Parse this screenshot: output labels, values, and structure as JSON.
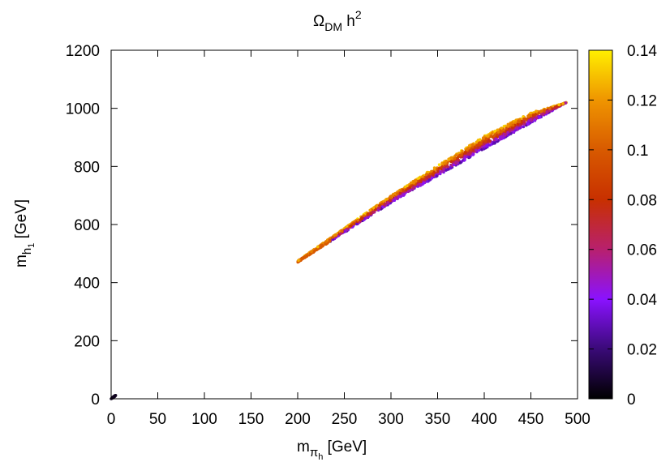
{
  "chart_data": {
    "type": "scatter",
    "title": {
      "base": "Ω",
      "sub": "DM",
      "mid": " h",
      "sup": "2"
    },
    "xlabel": {
      "base": "m",
      "sub": "π",
      "subsub": "h",
      "unit": " [GeV]"
    },
    "ylabel": {
      "base": "m",
      "sub": "h",
      "subsub": "1",
      "unit": " [GeV]"
    },
    "xlim": [
      0,
      500
    ],
    "ylim": [
      0,
      1200
    ],
    "xticks": [
      "0",
      "50",
      "100",
      "150",
      "200",
      "250",
      "300",
      "350",
      "400",
      "450",
      "500"
    ],
    "yticks": [
      "0",
      "200",
      "400",
      "600",
      "800",
      "1000",
      "1200"
    ],
    "grid": false,
    "colorbar": {
      "range": [
        0,
        0.14
      ],
      "ticks": [
        "0",
        "0.02",
        "0.04",
        "0.06",
        "0.08",
        "0.1",
        "0.12",
        "0.14"
      ],
      "palette": [
        {
          "v": 0.0,
          "color": "#000000"
        },
        {
          "v": 0.02,
          "color": "#3a0a78"
        },
        {
          "v": 0.04,
          "color": "#8a12ff"
        },
        {
          "v": 0.06,
          "color": "#b8206e"
        },
        {
          "v": 0.08,
          "color": "#c83000"
        },
        {
          "v": 0.1,
          "color": "#d85a00"
        },
        {
          "v": 0.12,
          "color": "#ef9500"
        },
        {
          "v": 0.14,
          "color": "#ffef00"
        }
      ]
    },
    "band": {
      "x_range": [
        200,
        488
      ],
      "upper_edge": [
        [
          200,
          475
        ],
        [
          300,
          700
        ],
        [
          400,
          905
        ],
        [
          450,
          985
        ],
        [
          488,
          1020
        ]
      ],
      "lower_edge": [
        [
          200,
          470
        ],
        [
          300,
          675
        ],
        [
          400,
          860
        ],
        [
          450,
          950
        ],
        [
          488,
          1020
        ]
      ],
      "omega_at_upper_edge": 0.13,
      "omega_at_lower_edge": 0.03
    },
    "origin_cluster": {
      "x_range": [
        0,
        5
      ],
      "y_range": [
        0,
        12
      ],
      "omega": 0.005
    }
  }
}
